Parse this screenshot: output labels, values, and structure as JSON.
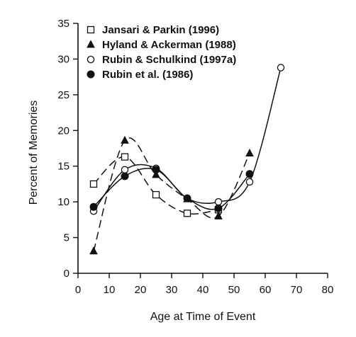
{
  "chart_data": {
    "type": "line",
    "title": "",
    "xlabel": "Age at Time of Event",
    "ylabel": "Percent of Memories",
    "xlim": [
      0,
      80
    ],
    "ylim": [
      0,
      35
    ],
    "xticks": [
      0,
      10,
      20,
      30,
      40,
      50,
      60,
      70,
      80
    ],
    "yticks": [
      0,
      5,
      10,
      15,
      20,
      25,
      30,
      35
    ],
    "grid": false,
    "legend_position": "top-left",
    "series": [
      {
        "name": "Jansari & Parkin (1996)",
        "marker": "open-square",
        "line_style": "dashed",
        "x": [
          5,
          15,
          25,
          35,
          45
        ],
        "y": [
          12.5,
          16.3,
          11.0,
          8.4,
          8.9
        ]
      },
      {
        "name": "Hyland & Ackerman (1988)",
        "marker": "filled-triangle",
        "line_style": "dashed",
        "x": [
          5,
          15,
          25,
          35,
          45,
          55
        ],
        "y": [
          3.1,
          18.6,
          13.8,
          10.4,
          8.0,
          16.8
        ]
      },
      {
        "name": "Rubin & Schulkind (1997a)",
        "marker": "open-circle",
        "line_style": "solid",
        "x": [
          5,
          15,
          25,
          35,
          45,
          55,
          65
        ],
        "y": [
          8.7,
          14.5,
          14.7,
          10.5,
          10.0,
          12.8,
          28.8
        ]
      },
      {
        "name": "Rubin et al. (1986)",
        "marker": "filled-circle",
        "line_style": "solid",
        "x": [
          5,
          15,
          25,
          35,
          45,
          55
        ],
        "y": [
          9.3,
          13.6,
          14.5,
          10.5,
          9.1,
          13.9
        ]
      }
    ]
  }
}
